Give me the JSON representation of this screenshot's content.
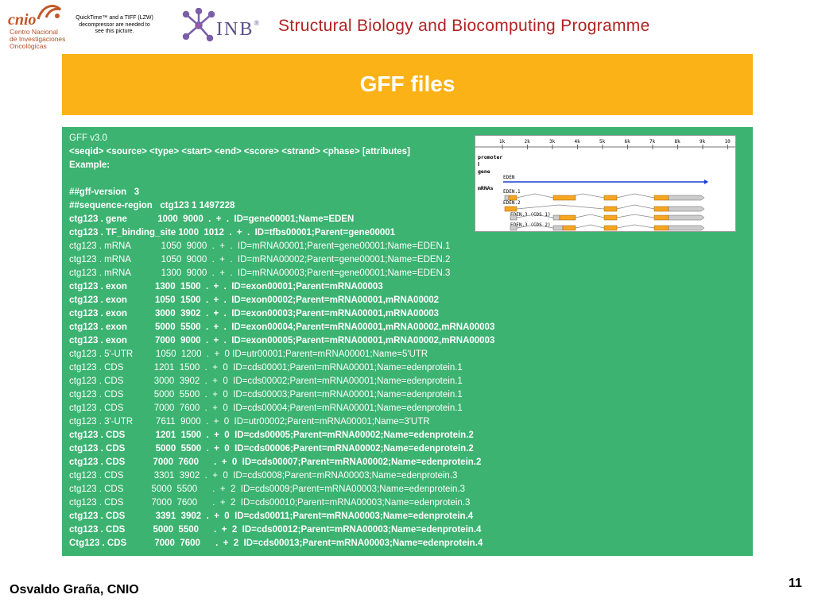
{
  "header": {
    "cnio_logo": {
      "word": "cnio",
      "subtitle_lines": [
        "Centro Nacional",
        "de Investigaciones",
        "Oncológicas"
      ]
    },
    "quicktime_note": "QuickTime™ and a TIFF (LZW) decompressor are needed to see this picture.",
    "inb_logo_text": "INB",
    "inb_registered": "®",
    "program_title": "Structural Biology and Biocomputing Programme"
  },
  "banner": {
    "title": "GFF files"
  },
  "gff_lines": [
    {
      "text": "GFF v3.0",
      "bold": false
    },
    {
      "text": "<seqid> <source> <type> <start> <end> <score> <strand> <phase> [attributes]",
      "bold": true
    },
    {
      "text": "Example:",
      "bold": true
    },
    {
      "text": "",
      "bold": false
    },
    {
      "text": "##gff-version   3",
      "bold": true
    },
    {
      "text": "##sequence-region   ctg123 1 1497228",
      "bold": true
    },
    {
      "text": "ctg123 . gene            1000  9000  .  +  .  ID=gene00001;Name=EDEN",
      "bold": true
    },
    {
      "text": "ctg123 . TF_binding_site 1000  1012  .  +  .  ID=tfbs00001;Parent=gene00001",
      "bold": true
    },
    {
      "text": "ctg123 . mRNA            1050  9000  .  +  .  ID=mRNA00001;Parent=gene00001;Name=EDEN.1",
      "bold": false
    },
    {
      "text": "ctg123 . mRNA            1050  9000  .  +  .  ID=mRNA00002;Parent=gene00001;Name=EDEN.2",
      "bold": false
    },
    {
      "text": "ctg123 . mRNA            1300  9000  .  +  .  ID=mRNA00003;Parent=gene00001;Name=EDEN.3",
      "bold": false
    },
    {
      "text": "ctg123 . exon           1300  1500  .  +  .  ID=exon00001;Parent=mRNA00003",
      "bold": true
    },
    {
      "text": "ctg123 . exon           1050  1500  .  +  .  ID=exon00002;Parent=mRNA00001,mRNA00002",
      "bold": true
    },
    {
      "text": "ctg123 . exon           3000  3902  .  +  .  ID=exon00003;Parent=mRNA00001,mRNA00003",
      "bold": true
    },
    {
      "text": "ctg123 . exon           5000  5500  .  +  .  ID=exon00004;Parent=mRNA00001,mRNA00002,mRNA00003",
      "bold": true
    },
    {
      "text": "ctg123 . exon           7000  9000  .  +  .  ID=exon00005;Parent=mRNA00001,mRNA00002,mRNA00003",
      "bold": true
    },
    {
      "text": "ctg123 . 5'-UTR         1050  1200  .  +  0 ID=utr00001;Parent=mRNA00001;Name=5'UTR",
      "bold": false
    },
    {
      "text": "ctg123 . CDS            1201  1500  .  +  0  ID=cds00001;Parent=mRNA00001;Name=edenprotein.1",
      "bold": false
    },
    {
      "text": "ctg123 . CDS            3000  3902  .  +  0  ID=cds00002;Parent=mRNA00001;Name=edenprotein.1",
      "bold": false
    },
    {
      "text": "ctg123 . CDS            5000  5500  .  +  0  ID=cds00003;Parent=mRNA00001;Name=edenprotein.1",
      "bold": false
    },
    {
      "text": "ctg123 . CDS            7000  7600  .  +  0  ID=cds00004;Parent=mRNA00001;Name=edenprotein.1",
      "bold": false
    },
    {
      "text": "ctg123 . 3'-UTR         7611  9000  .  +  0  ID=utr00002;Parent=mRNA00001;Name=3'UTR",
      "bold": false
    },
    {
      "text": "ctg123 . CDS            1201  1500  .  +  0  ID=cds00005;Parent=mRNA00002;Name=edenprotein.2",
      "bold": true
    },
    {
      "text": "ctg123 . CDS            5000  5500  .  +  0  ID=cds00006;Parent=mRNA00002;Name=edenprotein.2",
      "bold": true
    },
    {
      "text": "ctg123 . CDS           7000  7600      .  +  0  ID=cds00007;Parent=mRNA00002;Name=edenprotein.2",
      "bold": true
    },
    {
      "text": "ctg123 . CDS            3301  3902  .  +  0  ID=cds0008;Parent=mRNA00003;Name=edenprotein.3",
      "bold": false
    },
    {
      "text": "ctg123 . CDS           5000  5500      .  +  2  ID=cds0009;Parent=mRNA00003;Name=edenprotein.3",
      "bold": false
    },
    {
      "text": "ctg123 . CDS           7000  7600      .  +  2  ID=cds00010;Parent=mRNA00003;Name=edenprotein.3",
      "bold": false
    },
    {
      "text": "ctg123 . CDS            3391  3902  .  +  0  ID=cds00011;Parent=mRNA00003;Name=edenprotein.4",
      "bold": true
    },
    {
      "text": "ctg123 . CDS           5000  5500      .  +  2  ID=cds00012;Parent=mRNA00003;Name=edenprotein.4",
      "bold": true
    },
    {
      "text": "Ctg123 . CDS           7000  7600      .  +  2  ID=cds00013;Parent=mRNA00003;Name=edenprotein.4",
      "bold": true
    }
  ],
  "gene_figure": {
    "ruler_ticks": [
      "1k",
      "2k",
      "3k",
      "4k",
      "5k",
      "6k",
      "7k",
      "8k",
      "9k",
      "10"
    ],
    "track_labels": [
      "promoter",
      "gene",
      "mRNAs"
    ],
    "gene_name": "EDEN",
    "mrna_labels": [
      "EDEN.1",
      "EDEN.2",
      "EDEN.3 (CDS 1)",
      "EDEN.3 (CDS 2)"
    ],
    "colors": {
      "exon": "#f6a623",
      "utr": "#cccccc",
      "gene_arrow": "#1a3bd6"
    }
  },
  "footer": {
    "author": "Osvaldo Graña, CNIO",
    "page_number": "11"
  }
}
